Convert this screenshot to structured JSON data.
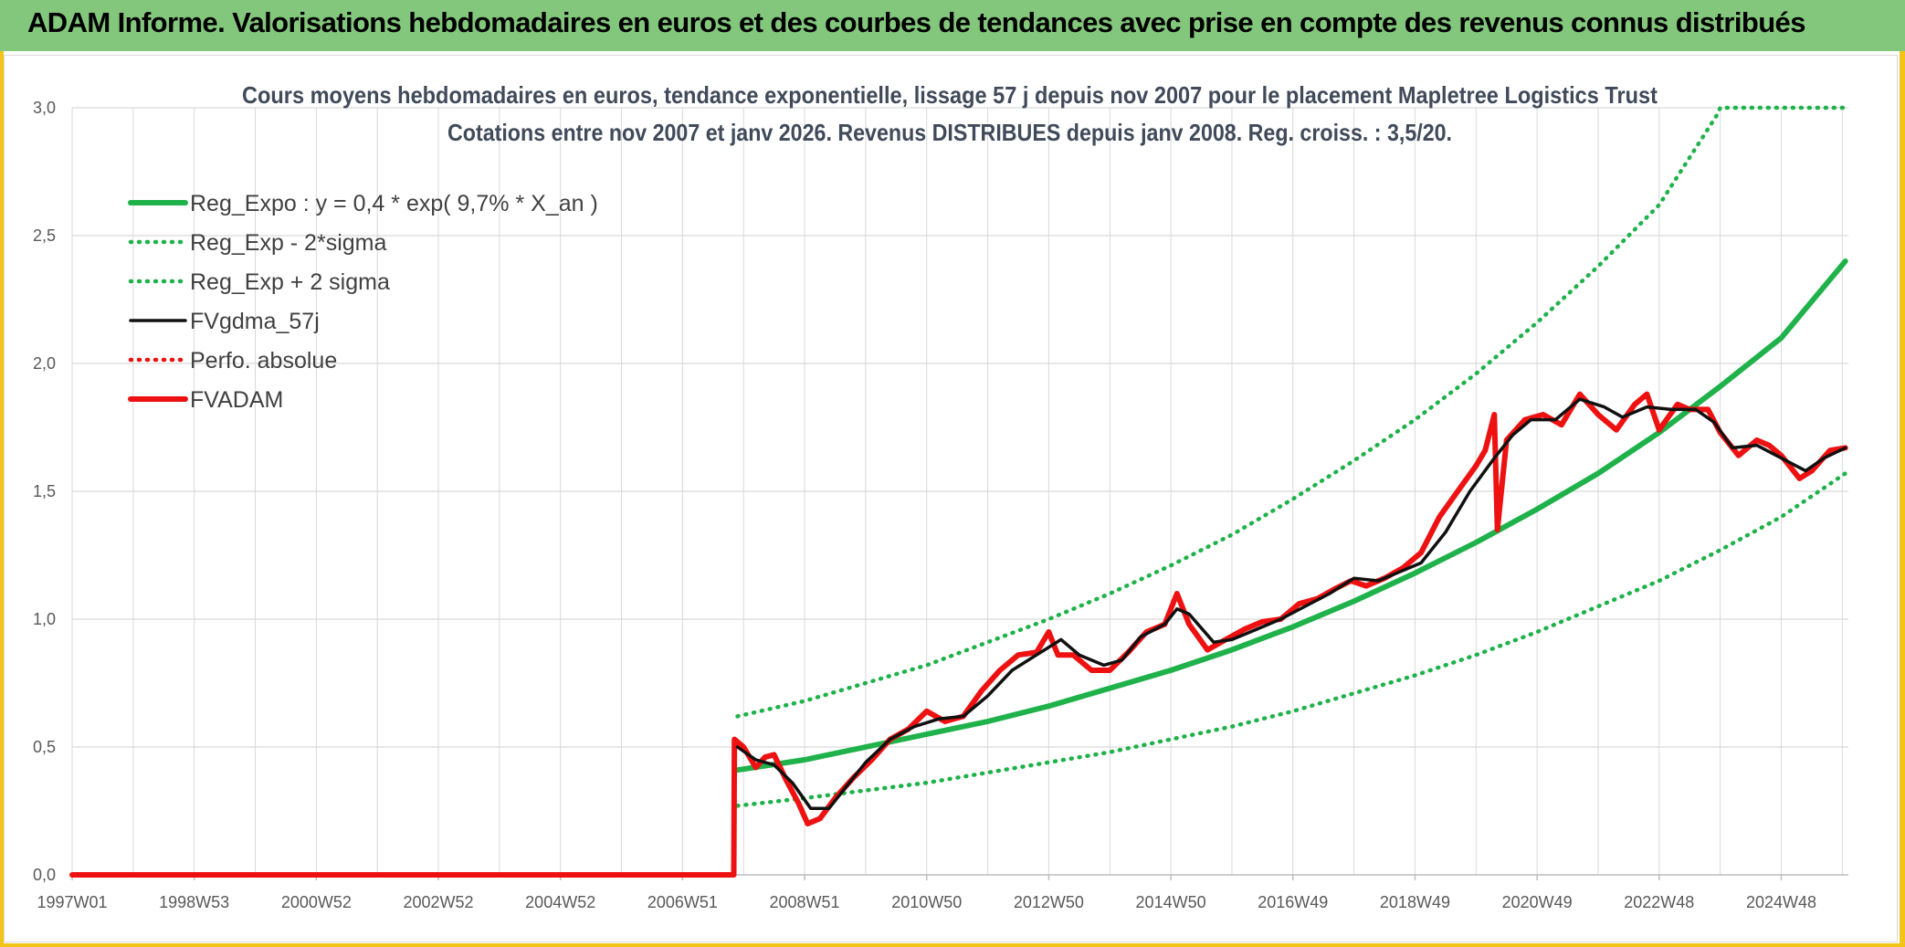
{
  "banner": {
    "title": "ADAM Informe. Valorisations hebdomadaires en euros et des courbes de tendances avec prise en compte des revenus connus distribués"
  },
  "colors": {
    "banner_bg": "#83c77c",
    "trend_green": "#1fb24a",
    "price_red": "#ee1111",
    "smooth_black": "#111111",
    "grid": "#d9d9d9"
  },
  "chart_data": {
    "type": "line",
    "title_line1": "Cours moyens hebdomadaires en euros, tendance exponentielle, lissage 57 j depuis nov 2007 pour le placement Mapletree Logistics Trust",
    "title_line2": "Cotations entre nov 2007 et janv 2026. Revenus DISTRIBUES depuis janv 2008. Reg. croiss. : 3,5/20.",
    "x_axis": {
      "start": 1997.0,
      "end": 2026.1,
      "ticks": [
        {
          "label": "1997W01",
          "x": 1997.0
        },
        {
          "label": "1998W53",
          "x": 1999.0
        },
        {
          "label": "2000W52",
          "x": 2001.0
        },
        {
          "label": "2002W52",
          "x": 2003.0
        },
        {
          "label": "2004W52",
          "x": 2005.0
        },
        {
          "label": "2006W51",
          "x": 2007.0
        },
        {
          "label": "2008W51",
          "x": 2009.0
        },
        {
          "label": "2010W50",
          "x": 2011.0
        },
        {
          "label": "2012W50",
          "x": 2013.0
        },
        {
          "label": "2014W50",
          "x": 2015.0
        },
        {
          "label": "2016W49",
          "x": 2017.0
        },
        {
          "label": "2018W49",
          "x": 2019.0
        },
        {
          "label": "2020W49",
          "x": 2021.0
        },
        {
          "label": "2022W48",
          "x": 2023.0
        },
        {
          "label": "2024W48",
          "x": 2025.0
        }
      ]
    },
    "y_axis": {
      "min": 0,
      "max": 3.0,
      "ticks": [
        "0,0",
        "0,5",
        "1,0",
        "1,5",
        "2,0",
        "2,5",
        "3,0"
      ]
    },
    "grid": true,
    "legend_position": "top-left",
    "series": [
      {
        "name": "Reg_Expo : y = 0,4 * exp( 9,7% *  X_an )",
        "style": "solid-thick",
        "color": "#1fb24a",
        "points": [
          [
            2007.9,
            0.41
          ],
          [
            2009,
            0.45
          ],
          [
            2010,
            0.5
          ],
          [
            2011,
            0.55
          ],
          [
            2012,
            0.6
          ],
          [
            2013,
            0.66
          ],
          [
            2014,
            0.73
          ],
          [
            2015,
            0.8
          ],
          [
            2016,
            0.88
          ],
          [
            2017,
            0.97
          ],
          [
            2018,
            1.07
          ],
          [
            2019,
            1.18
          ],
          [
            2020,
            1.3
          ],
          [
            2021,
            1.43
          ],
          [
            2022,
            1.57
          ],
          [
            2023,
            1.73
          ],
          [
            2024,
            1.91
          ],
          [
            2025,
            2.1
          ],
          [
            2026.05,
            2.4
          ]
        ]
      },
      {
        "name": "Reg_Exp - 2*sigma",
        "style": "dotted",
        "color": "#1fb24a",
        "points": [
          [
            2007.9,
            0.27
          ],
          [
            2009,
            0.3
          ],
          [
            2010,
            0.33
          ],
          [
            2011,
            0.36
          ],
          [
            2012,
            0.4
          ],
          [
            2013,
            0.44
          ],
          [
            2014,
            0.48
          ],
          [
            2015,
            0.53
          ],
          [
            2016,
            0.58
          ],
          [
            2017,
            0.64
          ],
          [
            2018,
            0.71
          ],
          [
            2019,
            0.78
          ],
          [
            2020,
            0.86
          ],
          [
            2021,
            0.95
          ],
          [
            2022,
            1.05
          ],
          [
            2023,
            1.15
          ],
          [
            2024,
            1.27
          ],
          [
            2025,
            1.4
          ],
          [
            2026.05,
            1.57
          ]
        ]
      },
      {
        "name": "Reg_Exp + 2 sigma",
        "style": "dotted",
        "color": "#1fb24a",
        "points": [
          [
            2007.9,
            0.62
          ],
          [
            2009,
            0.68
          ],
          [
            2010,
            0.75
          ],
          [
            2011,
            0.82
          ],
          [
            2012,
            0.91
          ],
          [
            2013,
            1.0
          ],
          [
            2014,
            1.1
          ],
          [
            2015,
            1.21
          ],
          [
            2016,
            1.33
          ],
          [
            2017,
            1.47
          ],
          [
            2018,
            1.62
          ],
          [
            2019,
            1.78
          ],
          [
            2020,
            1.96
          ],
          [
            2021,
            2.16
          ],
          [
            2022,
            2.38
          ],
          [
            2023,
            2.62
          ],
          [
            2023.97,
            2.98
          ],
          [
            2024,
            3.0
          ],
          [
            2026.05,
            3.0
          ]
        ]
      },
      {
        "name": "FVgdma_57j",
        "style": "solid",
        "color": "#111111",
        "points": [
          [
            2007.9,
            0.5
          ],
          [
            2008.2,
            0.45
          ],
          [
            2008.5,
            0.43
          ],
          [
            2008.8,
            0.36
          ],
          [
            2009.1,
            0.26
          ],
          [
            2009.4,
            0.26
          ],
          [
            2009.7,
            0.35
          ],
          [
            2010.0,
            0.44
          ],
          [
            2010.4,
            0.53
          ],
          [
            2010.8,
            0.58
          ],
          [
            2011.2,
            0.61
          ],
          [
            2011.6,
            0.62
          ],
          [
            2012.0,
            0.7
          ],
          [
            2012.4,
            0.8
          ],
          [
            2012.8,
            0.86
          ],
          [
            2013.2,
            0.92
          ],
          [
            2013.5,
            0.86
          ],
          [
            2013.9,
            0.82
          ],
          [
            2014.2,
            0.84
          ],
          [
            2014.5,
            0.93
          ],
          [
            2014.9,
            0.98
          ],
          [
            2015.1,
            1.04
          ],
          [
            2015.3,
            1.02
          ],
          [
            2015.7,
            0.91
          ],
          [
            2016.0,
            0.92
          ],
          [
            2016.4,
            0.96
          ],
          [
            2016.8,
            1.0
          ],
          [
            2017.2,
            1.05
          ],
          [
            2017.6,
            1.1
          ],
          [
            2018.0,
            1.16
          ],
          [
            2018.4,
            1.15
          ],
          [
            2018.8,
            1.19
          ],
          [
            2019.1,
            1.22
          ],
          [
            2019.5,
            1.34
          ],
          [
            2019.9,
            1.5
          ],
          [
            2020.3,
            1.63
          ],
          [
            2020.6,
            1.72
          ],
          [
            2020.9,
            1.78
          ],
          [
            2021.3,
            1.78
          ],
          [
            2021.7,
            1.86
          ],
          [
            2022.1,
            1.83
          ],
          [
            2022.4,
            1.79
          ],
          [
            2022.8,
            1.83
          ],
          [
            2023.2,
            1.82
          ],
          [
            2023.6,
            1.82
          ],
          [
            2023.9,
            1.77
          ],
          [
            2024.2,
            1.67
          ],
          [
            2024.6,
            1.68
          ],
          [
            2025.0,
            1.63
          ],
          [
            2025.4,
            1.58
          ],
          [
            2025.7,
            1.63
          ],
          [
            2026.05,
            1.67
          ]
        ]
      },
      {
        "name": "Perfo. absolue",
        "style": "dotted",
        "color": "#ee1111",
        "points": []
      },
      {
        "name": "FVADAM",
        "style": "solid-thick",
        "color": "#ee1111",
        "points": [
          [
            1997.0,
            0.0
          ],
          [
            2007.84,
            0.0
          ],
          [
            2007.85,
            0.53
          ],
          [
            2008.0,
            0.5
          ],
          [
            2008.2,
            0.42
          ],
          [
            2008.35,
            0.46
          ],
          [
            2008.5,
            0.47
          ],
          [
            2008.7,
            0.37
          ],
          [
            2008.9,
            0.28
          ],
          [
            2009.05,
            0.2
          ],
          [
            2009.25,
            0.22
          ],
          [
            2009.5,
            0.3
          ],
          [
            2009.8,
            0.38
          ],
          [
            2010.1,
            0.45
          ],
          [
            2010.4,
            0.53
          ],
          [
            2010.7,
            0.57
          ],
          [
            2011.0,
            0.64
          ],
          [
            2011.3,
            0.6
          ],
          [
            2011.6,
            0.62
          ],
          [
            2011.9,
            0.72
          ],
          [
            2012.2,
            0.8
          ],
          [
            2012.5,
            0.86
          ],
          [
            2012.8,
            0.87
          ],
          [
            2013.0,
            0.95
          ],
          [
            2013.15,
            0.86
          ],
          [
            2013.4,
            0.86
          ],
          [
            2013.7,
            0.8
          ],
          [
            2014.0,
            0.8
          ],
          [
            2014.3,
            0.87
          ],
          [
            2014.6,
            0.95
          ],
          [
            2014.9,
            0.98
          ],
          [
            2015.1,
            1.1
          ],
          [
            2015.3,
            0.98
          ],
          [
            2015.6,
            0.88
          ],
          [
            2015.9,
            0.92
          ],
          [
            2016.2,
            0.96
          ],
          [
            2016.5,
            0.99
          ],
          [
            2016.8,
            1.0
          ],
          [
            2017.1,
            1.06
          ],
          [
            2017.4,
            1.08
          ],
          [
            2017.7,
            1.12
          ],
          [
            2017.95,
            1.15
          ],
          [
            2018.2,
            1.13
          ],
          [
            2018.5,
            1.16
          ],
          [
            2018.8,
            1.2
          ],
          [
            2019.1,
            1.26
          ],
          [
            2019.4,
            1.4
          ],
          [
            2019.7,
            1.5
          ],
          [
            2020.0,
            1.6
          ],
          [
            2020.15,
            1.66
          ],
          [
            2020.3,
            1.8
          ],
          [
            2020.35,
            1.35
          ],
          [
            2020.5,
            1.7
          ],
          [
            2020.8,
            1.78
          ],
          [
            2021.1,
            1.8
          ],
          [
            2021.4,
            1.76
          ],
          [
            2021.7,
            1.88
          ],
          [
            2022.0,
            1.8
          ],
          [
            2022.3,
            1.74
          ],
          [
            2022.6,
            1.84
          ],
          [
            2022.8,
            1.88
          ],
          [
            2023.0,
            1.74
          ],
          [
            2023.3,
            1.84
          ],
          [
            2023.5,
            1.82
          ],
          [
            2023.8,
            1.82
          ],
          [
            2024.0,
            1.73
          ],
          [
            2024.3,
            1.64
          ],
          [
            2024.6,
            1.7
          ],
          [
            2024.8,
            1.68
          ],
          [
            2025.0,
            1.64
          ],
          [
            2025.3,
            1.55
          ],
          [
            2025.5,
            1.58
          ],
          [
            2025.8,
            1.66
          ],
          [
            2026.05,
            1.67
          ]
        ]
      }
    ]
  }
}
